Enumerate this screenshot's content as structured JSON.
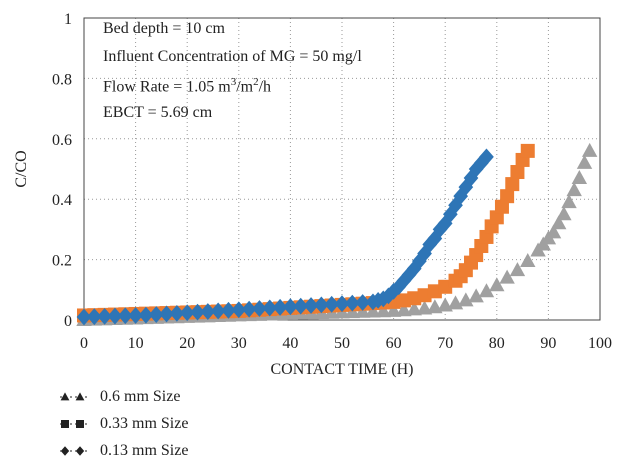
{
  "chart_data": {
    "type": "scatter",
    "xlabel": "CONTACT TIME (H)",
    "ylabel": "C/CO",
    "xlim": [
      0,
      100
    ],
    "ylim": [
      0,
      1
    ],
    "xticks": [
      0,
      10,
      20,
      30,
      40,
      50,
      60,
      70,
      80,
      90,
      100
    ],
    "yticks": [
      {
        "value": 0,
        "label": "0"
      },
      {
        "value": 0.2,
        "label": "0.2"
      },
      {
        "value": 0.4,
        "label": "0.4"
      },
      {
        "value": 0.6,
        "label": "0.6"
      },
      {
        "value": 0.8,
        "label": "0.8"
      },
      {
        "value": 1,
        "label": "1"
      }
    ],
    "grid": "dotted",
    "annotation_lines": [
      {
        "pre": "Bed depth = 10 cm",
        "sup1": "",
        "mid": "",
        "sup2": "",
        "post": ""
      },
      {
        "pre": "Influent Concentration of MG = 50 mg/l",
        "sup1": "",
        "mid": "",
        "sup2": "",
        "post": ""
      },
      {
        "pre": "Flow Rate = 1.05 m",
        "sup1": "3",
        "mid": "/m",
        "sup2": "2",
        "post": "/h"
      },
      {
        "pre": "EBCT = 5.69 cm",
        "sup1": "",
        "mid": "",
        "sup2": "",
        "post": ""
      }
    ],
    "series": [
      {
        "name": "0.6 mm Size",
        "color": "#a0a0a0",
        "marker": "triangle",
        "x": [
          0,
          2,
          4,
          6,
          8,
          10,
          12,
          14,
          16,
          18,
          20,
          22,
          24,
          26,
          28,
          30,
          32,
          34,
          36,
          38,
          40,
          42,
          44,
          46,
          48,
          50,
          52,
          54,
          56,
          58,
          60,
          62,
          64,
          66,
          68,
          70,
          72,
          74,
          76,
          78,
          80,
          82,
          84,
          86,
          88,
          89,
          90,
          91,
          92,
          93,
          94,
          95,
          96,
          97,
          98
        ],
        "y": [
          0.0,
          0.001,
          0.002,
          0.003,
          0.004,
          0.005,
          0.006,
          0.007,
          0.008,
          0.009,
          0.01,
          0.011,
          0.012,
          0.013,
          0.014,
          0.015,
          0.016,
          0.017,
          0.018,
          0.019,
          0.02,
          0.021,
          0.022,
          0.023,
          0.024,
          0.025,
          0.026,
          0.027,
          0.028,
          0.029,
          0.03,
          0.032,
          0.035,
          0.038,
          0.042,
          0.048,
          0.055,
          0.065,
          0.078,
          0.095,
          0.115,
          0.14,
          0.165,
          0.195,
          0.23,
          0.25,
          0.27,
          0.29,
          0.32,
          0.35,
          0.39,
          0.43,
          0.47,
          0.52,
          0.56
        ]
      },
      {
        "name": "0.33 mm Size",
        "color": "#ed7d31",
        "marker": "square",
        "x": [
          0,
          2,
          4,
          6,
          8,
          10,
          12,
          14,
          16,
          18,
          20,
          22,
          24,
          26,
          28,
          30,
          32,
          34,
          36,
          38,
          40,
          42,
          44,
          46,
          48,
          50,
          52,
          54,
          56,
          58,
          60,
          62,
          64,
          66,
          68,
          70,
          72,
          73,
          74,
          75,
          76,
          77,
          78,
          79,
          80,
          81,
          82,
          83,
          84,
          85,
          86
        ],
        "y": [
          0.015,
          0.016,
          0.017,
          0.018,
          0.019,
          0.02,
          0.021,
          0.022,
          0.023,
          0.024,
          0.025,
          0.026,
          0.027,
          0.028,
          0.029,
          0.03,
          0.032,
          0.034,
          0.036,
          0.038,
          0.04,
          0.042,
          0.044,
          0.046,
          0.048,
          0.05,
          0.052,
          0.054,
          0.056,
          0.058,
          0.06,
          0.065,
          0.072,
          0.082,
          0.095,
          0.11,
          0.13,
          0.145,
          0.165,
          0.19,
          0.215,
          0.245,
          0.275,
          0.31,
          0.34,
          0.375,
          0.41,
          0.45,
          0.49,
          0.53,
          0.56
        ]
      },
      {
        "name": "0.13 mm Size",
        "color": "#2e75b6",
        "marker": "diamond",
        "x": [
          0,
          2,
          4,
          6,
          8,
          10,
          12,
          14,
          16,
          18,
          20,
          22,
          24,
          26,
          28,
          30,
          32,
          34,
          36,
          38,
          40,
          42,
          44,
          46,
          48,
          50,
          52,
          54,
          56,
          57,
          58,
          59,
          60,
          61,
          62,
          63,
          64,
          65,
          66,
          67,
          68,
          69,
          70,
          71,
          72,
          73,
          74,
          75,
          76,
          77,
          78
        ],
        "y": [
          0.01,
          0.011,
          0.012,
          0.013,
          0.014,
          0.015,
          0.016,
          0.018,
          0.02,
          0.022,
          0.024,
          0.026,
          0.028,
          0.03,
          0.032,
          0.034,
          0.036,
          0.038,
          0.04,
          0.042,
          0.044,
          0.046,
          0.048,
          0.05,
          0.052,
          0.054,
          0.056,
          0.058,
          0.06,
          0.065,
          0.07,
          0.08,
          0.095,
          0.11,
          0.13,
          0.15,
          0.17,
          0.195,
          0.22,
          0.25,
          0.27,
          0.3,
          0.32,
          0.35,
          0.38,
          0.41,
          0.44,
          0.47,
          0.5,
          0.52,
          0.54
        ]
      }
    ],
    "legend_order": [
      0,
      1,
      2
    ]
  }
}
